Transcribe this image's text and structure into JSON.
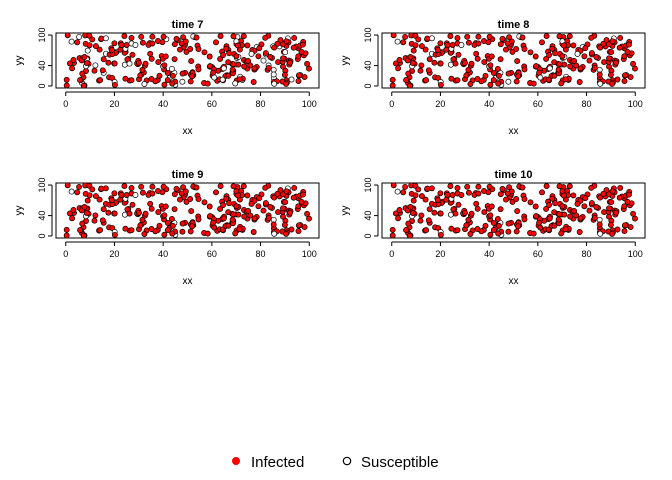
{
  "chart_data": [
    {
      "type": "scatter",
      "title": "time  7",
      "xlabel": "xx",
      "ylabel": "yy",
      "xlim": [
        0,
        100
      ],
      "ylim": [
        0,
        100
      ],
      "xticks": [
        0,
        20,
        40,
        60,
        80,
        100
      ],
      "yticks": [
        0,
        40,
        100
      ],
      "susceptible_count": 58,
      "infected_count": 242
    },
    {
      "type": "scatter",
      "title": "time  8",
      "xlabel": "xx",
      "ylabel": "yy",
      "xlim": [
        0,
        100
      ],
      "ylim": [
        0,
        100
      ],
      "xticks": [
        0,
        20,
        40,
        60,
        80,
        100
      ],
      "yticks": [
        0,
        40,
        100
      ],
      "susceptible_count": 30,
      "infected_count": 270
    },
    {
      "type": "scatter",
      "title": "time  9",
      "xlabel": "xx",
      "ylabel": "yy",
      "xlim": [
        0,
        100
      ],
      "ylim": [
        0,
        100
      ],
      "xticks": [
        0,
        20,
        40,
        60,
        80,
        100
      ],
      "yticks": [
        0,
        40,
        100
      ],
      "susceptible_count": 15,
      "infected_count": 285
    },
    {
      "type": "scatter",
      "title": "time  10",
      "xlabel": "xx",
      "ylabel": "yy",
      "xlim": [
        0,
        100
      ],
      "ylim": [
        0,
        100
      ],
      "xticks": [
        0,
        20,
        40,
        60,
        80,
        100
      ],
      "yticks": [
        0,
        40,
        100
      ],
      "susceptible_count": 8,
      "infected_count": 292
    }
  ],
  "legend": {
    "position": "bottom-center",
    "items": [
      {
        "label": "Infected",
        "marker": "filled-dot",
        "color": "#ff0000"
      },
      {
        "label": "Susceptible",
        "marker": "open-circle",
        "color": "#000000"
      }
    ]
  },
  "colors": {
    "infected_fill": "#ff0000",
    "infected_stroke": "#000000",
    "susceptible_fill": "#ffffff",
    "susceptible_stroke": "#000000"
  }
}
